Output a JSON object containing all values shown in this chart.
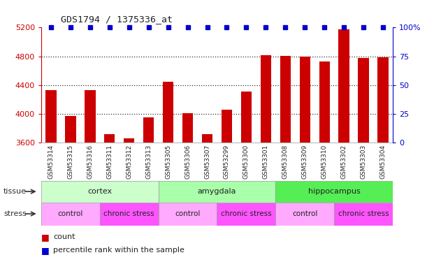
{
  "title": "GDS1794 / 1375336_at",
  "samples": [
    "GSM53314",
    "GSM53315",
    "GSM53316",
    "GSM53311",
    "GSM53312",
    "GSM53313",
    "GSM53305",
    "GSM53306",
    "GSM53307",
    "GSM53299",
    "GSM53300",
    "GSM53301",
    "GSM53308",
    "GSM53309",
    "GSM53310",
    "GSM53302",
    "GSM53303",
    "GSM53304"
  ],
  "counts": [
    4330,
    3970,
    4330,
    3720,
    3660,
    3950,
    4450,
    4010,
    3720,
    4060,
    4310,
    4820,
    4810,
    4800,
    4730,
    5170,
    4780,
    4790
  ],
  "ylim": [
    3600,
    5200
  ],
  "yticks_left": [
    3600,
    4000,
    4400,
    4800,
    5200
  ],
  "yticks_right": [
    0,
    25,
    50,
    75,
    100
  ],
  "gridlines": [
    4000,
    4400,
    4800
  ],
  "bar_color": "#cc0000",
  "blue_color": "#0000cc",
  "tissue_groups": [
    {
      "label": "cortex",
      "start": 0,
      "end": 6,
      "color": "#ccffcc"
    },
    {
      "label": "amygdala",
      "start": 6,
      "end": 12,
      "color": "#aaffaa"
    },
    {
      "label": "hippocampus",
      "start": 12,
      "end": 18,
      "color": "#55ee55"
    }
  ],
  "stress_groups": [
    {
      "label": "control",
      "start": 0,
      "end": 3,
      "color": "#ffaaff"
    },
    {
      "label": "chronic stress",
      "start": 3,
      "end": 6,
      "color": "#ff55ff"
    },
    {
      "label": "control",
      "start": 6,
      "end": 9,
      "color": "#ffaaff"
    },
    {
      "label": "chronic stress",
      "start": 9,
      "end": 12,
      "color": "#ff55ff"
    },
    {
      "label": "control",
      "start": 12,
      "end": 15,
      "color": "#ffaaff"
    },
    {
      "label": "chronic stress",
      "start": 15,
      "end": 18,
      "color": "#ff55ff"
    }
  ],
  "tissue_label": "tissue",
  "stress_label": "stress",
  "legend_count_label": "count",
  "legend_percentile_label": "percentile rank within the sample",
  "left_axis_color": "#cc0000",
  "right_axis_color": "#0000cc",
  "xtick_bg_color": "#d8d8d8",
  "background_color": "#ffffff"
}
